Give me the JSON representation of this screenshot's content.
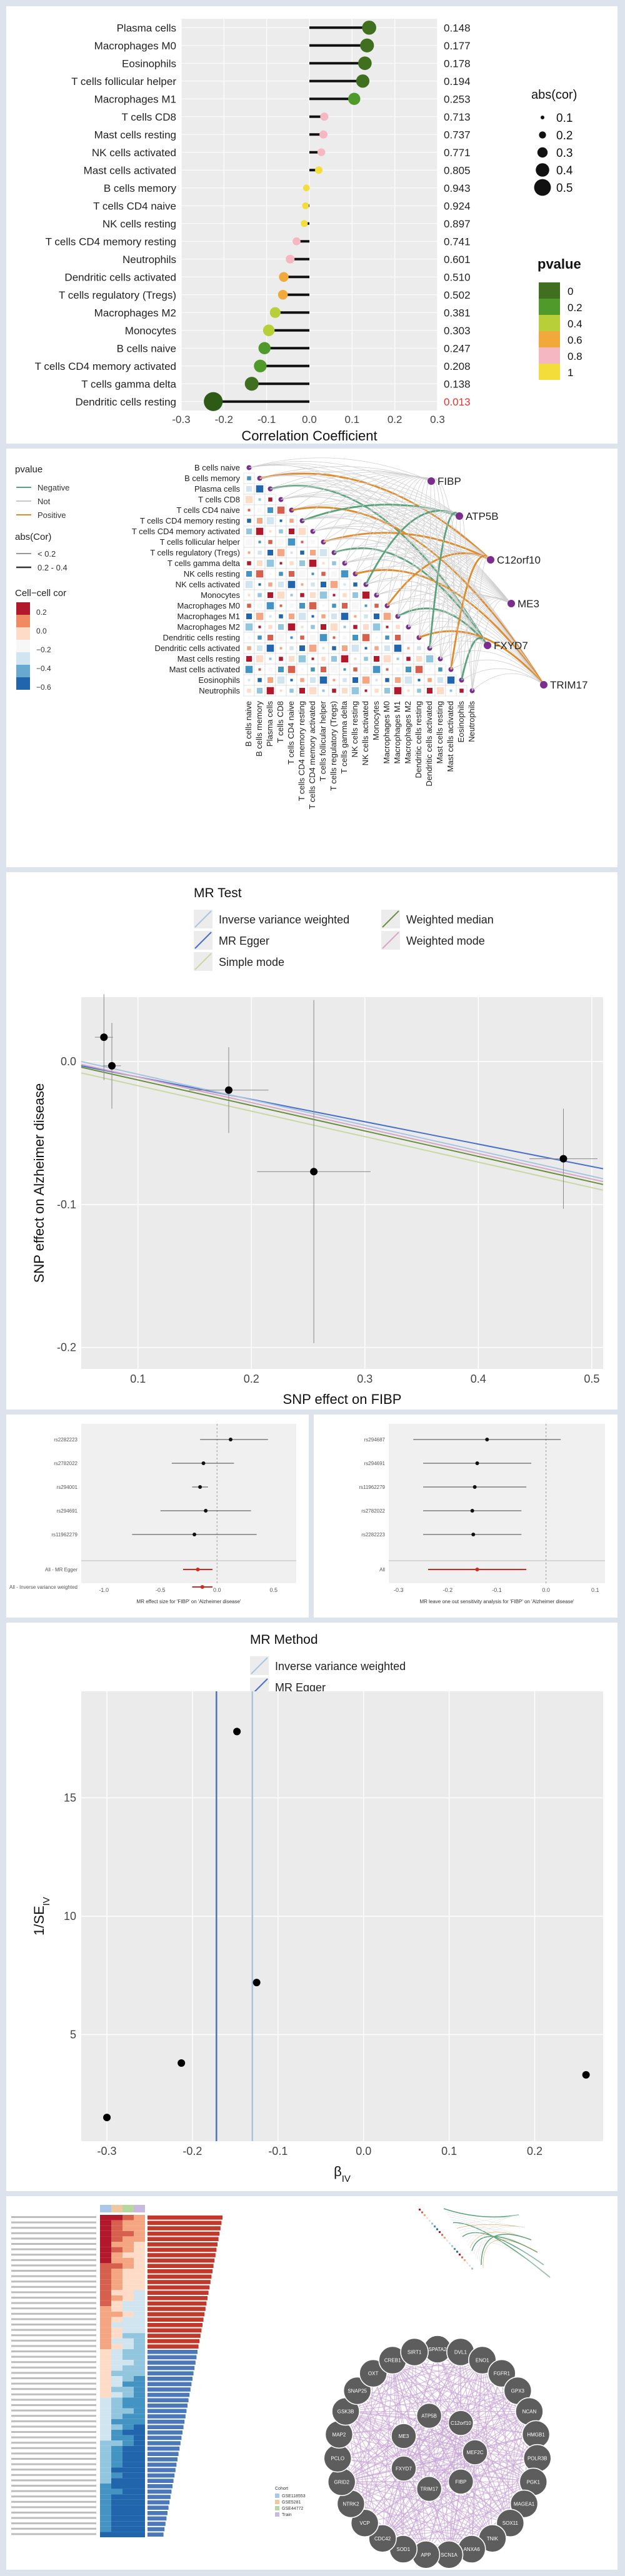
{
  "figure": {
    "panels": [
      {
        "id": "lollipop"
      },
      {
        "id": "heatmap_network"
      },
      {
        "id": "mr_scatter"
      },
      {
        "id": "forest_left"
      },
      {
        "id": "forest_right"
      },
      {
        "id": "funnel"
      },
      {
        "id": "composite"
      }
    ]
  },
  "chart_data": [
    {
      "type": "lollipop",
      "xlabel": "Correlation Coefficient",
      "xlim": [
        -0.3,
        0.3
      ],
      "xticks": [
        "-0.3",
        "-0.2",
        "-0.1",
        "0.0",
        "0.1",
        "0.2",
        "0.3"
      ],
      "legend_size_title": "abs(cor)",
      "legend_size_labels": [
        "0.1",
        "0.2",
        "0.3",
        "0.4",
        "0.5"
      ],
      "legend_color_title": "pvalue",
      "legend_color_labels": [
        "0",
        "0.2",
        "0.4",
        "0.6",
        "0.8",
        "1"
      ],
      "legend_colors": [
        "#3f6f1f",
        "#4f9a2a",
        "#b9cf3a",
        "#f0a93a",
        "#f5b8c2",
        "#f3dd3a"
      ],
      "cells": [
        {
          "name": "Plasma cells",
          "cor": 0.14,
          "p": "0.148",
          "color": "#3f6f1f"
        },
        {
          "name": "Macrophages M0",
          "cor": 0.135,
          "p": "0.177",
          "color": "#3f6f1f"
        },
        {
          "name": "Eosinophils",
          "cor": 0.13,
          "p": "0.178",
          "color": "#3f6f1f"
        },
        {
          "name": "T cells follicular helper",
          "cor": 0.125,
          "p": "0.194",
          "color": "#3f6f1f"
        },
        {
          "name": "Macrophages M1",
          "cor": 0.105,
          "p": "0.253",
          "color": "#4f9a2a"
        },
        {
          "name": "T cells CD8",
          "cor": 0.035,
          "p": "0.713",
          "color": "#f5b8c2"
        },
        {
          "name": "Mast cells resting",
          "cor": 0.033,
          "p": "0.737",
          "color": "#f5b8c2"
        },
        {
          "name": "NK cells activated",
          "cor": 0.028,
          "p": "0.771",
          "color": "#f5b8c2"
        },
        {
          "name": "Mast cells activated",
          "cor": 0.022,
          "p": "0.805",
          "color": "#f3dd3a"
        },
        {
          "name": "B cells memory",
          "cor": -0.007,
          "p": "0.943",
          "color": "#f3dd3a"
        },
        {
          "name": "T cells CD4 naive",
          "cor": -0.009,
          "p": "0.924",
          "color": "#f3dd3a"
        },
        {
          "name": "NK cells resting",
          "cor": -0.012,
          "p": "0.897",
          "color": "#f3dd3a"
        },
        {
          "name": "T cells CD4 memory resting",
          "cor": -0.03,
          "p": "0.741",
          "color": "#f5b8c2"
        },
        {
          "name": "Neutrophils",
          "cor": -0.045,
          "p": "0.601",
          "color": "#f5b8c2"
        },
        {
          "name": "Dendritic cells activated",
          "cor": -0.06,
          "p": "0.510",
          "color": "#f0a93a"
        },
        {
          "name": "T cells regulatory (Tregs)",
          "cor": -0.062,
          "p": "0.502",
          "color": "#f0a93a"
        },
        {
          "name": "Macrophages M2",
          "cor": -0.08,
          "p": "0.381",
          "color": "#b9cf3a"
        },
        {
          "name": "Monocytes",
          "cor": -0.095,
          "p": "0.303",
          "color": "#b9cf3a"
        },
        {
          "name": "B cells naive",
          "cor": -0.105,
          "p": "0.247",
          "color": "#4f9a2a"
        },
        {
          "name": "T cells CD4 memory activated",
          "cor": -0.115,
          "p": "0.208",
          "color": "#4f9a2a"
        },
        {
          "name": "T cells gamma delta",
          "cor": -0.135,
          "p": "0.138",
          "color": "#3f6f1f"
        },
        {
          "name": "Dendritic cells resting",
          "cor": -0.225,
          "p": "0.013",
          "color": "#2d5a15",
          "pcolor": "#e8302f"
        }
      ]
    },
    {
      "type": "heatmap",
      "legend_pvalue_title": "pvalue",
      "legend_pvalue_items": [
        {
          "label": "Negative",
          "color": "#5aa27c"
        },
        {
          "label": "Not",
          "color": "#c8c8c8"
        },
        {
          "label": "Positive",
          "color": "#e08a2a"
        }
      ],
      "legend_abs_title": "abs(Cor)",
      "legend_abs_items": [
        "< 0.2",
        "0.2 - 0.4"
      ],
      "legend_cor_title": "Cell−cell cor",
      "legend_cor_ticks": [
        "0.2",
        "0.0",
        "−0.2",
        "−0.4",
        "−0.6"
      ],
      "row_labels": [
        "B cells naive",
        "B cells memory",
        "Plasma cells",
        "T cells CD8",
        "T cells CD4 naive",
        "T cells CD4 memory resting",
        "T cells CD4 memory activated",
        "T cells follicular helper",
        "T cells regulatory (Tregs)",
        "T cells gamma delta",
        "NK cells resting",
        "NK cells activated",
        "Monocytes",
        "Macrophages M0",
        "Macrophages M1",
        "Macrophages M2",
        "Dendritic cells resting",
        "Dendritic cells activated",
        "Mast cells resting",
        "Mast cells activated",
        "Eosinophils",
        "Neutrophils"
      ],
      "genes": [
        "FIBP",
        "ATP5B",
        "C12orf10",
        "ME3",
        "FXYD7",
        "TRIM17"
      ]
    },
    {
      "type": "scatter",
      "legend_title": "MR Test",
      "legend_items": [
        {
          "label": "Inverse variance weighted",
          "color": "#a8c4e0"
        },
        {
          "label": "Weighted median",
          "color": "#6a8f3a"
        },
        {
          "label": "MR Egger",
          "color": "#4a70c8"
        },
        {
          "label": "Weighted mode",
          "color": "#d6a6c6"
        },
        {
          "label": "Simple mode",
          "color": "#c9d8a0"
        }
      ],
      "xlabel": "SNP effect on FIBP",
      "ylabel": "SNP effect on Alzheimer disease",
      "xlim": [
        0.05,
        0.51
      ],
      "ylim": [
        -0.215,
        0.045
      ],
      "xticks": [
        0.1,
        0.2,
        0.3,
        0.4,
        0.5
      ],
      "yticks": [
        0.0,
        -0.1,
        -0.2
      ],
      "xticklabels": [
        "0.1",
        "0.2",
        "0.3",
        "0.4",
        "0.5"
      ],
      "yticklabels": [
        "0.0",
        "-0.1",
        "-0.2"
      ],
      "points": [
        {
          "x": 0.07,
          "y": 0.017,
          "xerr": 0.008,
          "yerr": 0.03
        },
        {
          "x": 0.077,
          "y": -0.003,
          "xerr": 0.008,
          "yerr": 0.03
        },
        {
          "x": 0.18,
          "y": -0.02,
          "xerr": 0.035,
          "yerr": 0.03
        },
        {
          "x": 0.255,
          "y": -0.077,
          "xerr": 0.05,
          "yerr": 0.12
        },
        {
          "x": 0.475,
          "y": -0.068,
          "xerr": 0.03,
          "yerr": 0.035
        }
      ],
      "lines": [
        {
          "name": "MR Egger",
          "x0": 0.05,
          "y0": -0.003,
          "x1": 0.51,
          "y1": -0.075,
          "color": "#4a70c8"
        },
        {
          "name": "Inverse variance weighted",
          "x0": 0.05,
          "y0": 0.0,
          "x1": 0.51,
          "y1": -0.082,
          "color": "#a8c4e0"
        },
        {
          "name": "Weighted mode",
          "x0": 0.05,
          "y0": -0.002,
          "x1": 0.51,
          "y1": -0.084,
          "color": "#d6a6c6"
        },
        {
          "name": "Weighted median",
          "x0": 0.05,
          "y0": -0.004,
          "x1": 0.51,
          "y1": -0.086,
          "color": "#6a8f3a"
        },
        {
          "name": "Simple mode",
          "x0": 0.05,
          "y0": -0.008,
          "x1": 0.51,
          "y1": -0.09,
          "color": "#c9d8a0"
        }
      ]
    },
    {
      "type": "forest",
      "snps": [
        "rs2282223",
        "rs2782022",
        "rs294001",
        "rs294691",
        "rs11962279"
      ],
      "summary": [
        "All - MR Egger",
        "All - Inverse variance weighted"
      ],
      "xlabel": "MR effect size for 'FIBP' on 'Alzheimer disease'",
      "xticks": [
        "-1.0",
        "-0.5",
        "0.0",
        "0.5"
      ],
      "estimates": [
        {
          "est": 0.12,
          "lo": -0.15,
          "hi": 0.45
        },
        {
          "est": -0.12,
          "lo": -0.4,
          "hi": 0.15
        },
        {
          "est": -0.15,
          "lo": -0.22,
          "hi": -0.08
        },
        {
          "est": -0.1,
          "lo": -0.5,
          "hi": 0.3
        },
        {
          "est": -0.2,
          "lo": -0.75,
          "hi": 0.35
        }
      ],
      "summary_est": [
        {
          "est": -0.17,
          "lo": -0.3,
          "hi": -0.04
        },
        {
          "est": -0.13,
          "lo": -0.22,
          "hi": -0.04
        }
      ]
    },
    {
      "type": "forest",
      "snps": [
        "rs294687",
        "rs294691",
        "rs11962279",
        "rs2782022",
        "rs2282223"
      ],
      "summary": [
        "All"
      ],
      "xlabel": "MR leave one out sensitivity analysis for 'FIBP' on 'Alzheimer disease'",
      "xticks": [
        "-0.3",
        "-0.2",
        "-0.1",
        "0.0",
        "0.1"
      ],
      "estimates": [
        {
          "est": -0.12,
          "lo": -0.27,
          "hi": 0.03
        },
        {
          "est": -0.14,
          "lo": -0.25,
          "hi": -0.03
        },
        {
          "est": -0.145,
          "lo": -0.25,
          "hi": -0.04
        },
        {
          "est": -0.15,
          "lo": -0.25,
          "hi": -0.05
        },
        {
          "est": -0.148,
          "lo": -0.25,
          "hi": -0.05
        }
      ],
      "summary_est": [
        {
          "est": -0.14,
          "lo": -0.24,
          "hi": -0.04
        }
      ]
    },
    {
      "type": "scatter",
      "legend_title": "MR Method",
      "legend_items": [
        {
          "label": "Inverse variance weighted",
          "color": "#a8c4e0"
        },
        {
          "label": "MR Egger",
          "color": "#4a70c8"
        }
      ],
      "xlabel": "β",
      "xlabel_sub": "IV",
      "ylabel": "1/SE",
      "ylabel_sub": "IV",
      "xlim": [
        -0.33,
        0.28
      ],
      "ylim": [
        0.5,
        19.5
      ],
      "xticks": [
        -0.3,
        -0.2,
        -0.1,
        0.0,
        0.1,
        0.2
      ],
      "yticks": [
        5,
        10,
        15
      ],
      "xticklabels": [
        "-0.3",
        "-0.2",
        "-0.1",
        "0.0",
        "0.1",
        "0.2"
      ],
      "yticklabels": [
        "5",
        "10",
        "15"
      ],
      "points": [
        {
          "x": -0.3,
          "y": 1.5
        },
        {
          "x": -0.213,
          "y": 3.8
        },
        {
          "x": -0.148,
          "y": 17.8
        },
        {
          "x": -0.125,
          "y": 7.2
        },
        {
          "x": 0.26,
          "y": 3.3
        }
      ],
      "vlines": [
        {
          "name": "MR Egger",
          "x": -0.172,
          "color": "#4a70c8"
        },
        {
          "name": "Inverse variance weighted",
          "x": -0.13,
          "color": "#a8c4e0"
        }
      ]
    },
    {
      "type": "composite",
      "network_nodes": [
        "MEF2C",
        "FIBP",
        "TRIM17",
        "FXYD7",
        "ME3",
        "ATP5B",
        "C12orf10",
        "SPATA2",
        "DVL1",
        "ENO1",
        "FGFR1",
        "GPX3",
        "NCAN",
        "HMGB1",
        "POLR3B",
        "PGK1",
        "MAGEA1",
        "SOX11",
        "TNIK",
        "ANXA6",
        "SCN1A",
        "APP",
        "SOD1",
        "CDC42",
        "VCP",
        "NTRK2",
        "GRID2",
        "PCLO",
        "MAP2",
        "GSK3B",
        "SNAP25",
        "OXT",
        "CREB1",
        "SIRT1"
      ],
      "heat_legend_title": "Cohort",
      "heat_legend_items": [
        "GSE118553",
        "GSE5281",
        "GSE44772",
        "Train"
      ],
      "heat_legend_colors": [
        "#a9c7e8",
        "#f0c8a0",
        "#b5d8a0",
        "#c9b9e0"
      ],
      "method_rows": 60
    }
  ]
}
